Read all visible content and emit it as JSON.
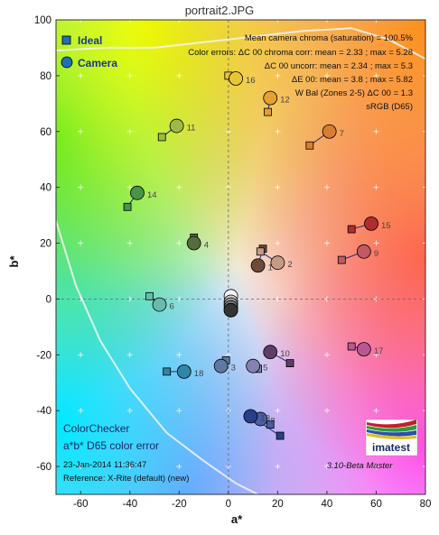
{
  "window": {
    "title": "portrait2.JPG"
  },
  "chart_data": {
    "type": "scatter",
    "xlabel": "a*",
    "ylabel": "b*",
    "xlim": [
      -70,
      80
    ],
    "ylim": [
      -70,
      100
    ],
    "xticks": [
      -60,
      -40,
      -20,
      0,
      20,
      40,
      60,
      80
    ],
    "yticks": [
      -60,
      -40,
      -20,
      0,
      20,
      40,
      60,
      80,
      100
    ],
    "grid": true,
    "legend": {
      "placement": "top-left",
      "entries": [
        {
          "label": "Ideal",
          "marker": "square"
        },
        {
          "label": "Camera",
          "marker": "circle"
        }
      ]
    },
    "stats_lines": [
      "Mean camera chroma (saturation) = 100.5%",
      "Color errors: ΔC 00 chroma corr:  mean = 2.33 ;  max = 5.28",
      "ΔC 00 uncorr:  mean = 2.34 ;  max = 5.3",
      "ΔE 00:  mean = 3.8 ;  max = 5.82",
      "W Bal (Zones 2-5) ΔC 00 = 1.3",
      "sRGB (D65)"
    ],
    "info_title": [
      "ColorChecker",
      "a*b* D65 color error"
    ],
    "info_lines": [
      "23-Jan-2014 11:36:47",
      "Reference: X-Rite (default) (new)"
    ],
    "version": "3.10-Beta  Master",
    "logo_text": "imatest",
    "patches": [
      {
        "id": "1",
        "ideal": [
          14,
          18
        ],
        "camera": [
          12,
          12
        ],
        "color": "#6e4a3a"
      },
      {
        "id": "2",
        "ideal": [
          13,
          17
        ],
        "camera": [
          20,
          13
        ],
        "color": "#c79a86"
      },
      {
        "id": "3",
        "ideal": [
          -1,
          -22
        ],
        "camera": [
          -3,
          -24
        ],
        "color": "#5e7aa0"
      },
      {
        "id": "4",
        "ideal": [
          -14,
          22
        ],
        "camera": [
          -14,
          20
        ],
        "color": "#566b3e"
      },
      {
        "id": "5",
        "ideal": [
          12,
          -25
        ],
        "camera": [
          10,
          -24
        ],
        "color": "#8481b3"
      },
      {
        "id": "6",
        "ideal": [
          -32,
          1
        ],
        "camera": [
          -28,
          -2
        ],
        "color": "#67bcac"
      },
      {
        "id": "7",
        "ideal": [
          33,
          55
        ],
        "camera": [
          41,
          60
        ],
        "color": "#d77e34"
      },
      {
        "id": "8",
        "ideal": [
          17,
          -45
        ],
        "camera": [
          13,
          -43
        ],
        "color": "#4a5da8"
      },
      {
        "id": "9",
        "ideal": [
          46,
          14
        ],
        "camera": [
          55,
          17
        ],
        "color": "#c25a63"
      },
      {
        "id": "10",
        "ideal": [
          25,
          -23
        ],
        "camera": [
          17,
          -19
        ],
        "color": "#5e3c6b"
      },
      {
        "id": "11",
        "ideal": [
          -27,
          58
        ],
        "camera": [
          -21,
          62
        ],
        "color": "#9dbb42"
      },
      {
        "id": "12",
        "ideal": [
          16,
          67
        ],
        "camera": [
          17,
          72
        ],
        "color": "#e4a12d"
      },
      {
        "id": "13",
        "ideal": [
          21,
          -49
        ],
        "camera": [
          9,
          -42
        ],
        "color": "#2a3d8a"
      },
      {
        "id": "14",
        "ideal": [
          -41,
          33
        ],
        "camera": [
          -37,
          38
        ],
        "color": "#4a9447"
      },
      {
        "id": "15",
        "ideal": [
          50,
          25
        ],
        "camera": [
          58,
          27
        ],
        "color": "#b02c33"
      },
      {
        "id": "16",
        "ideal": [
          0,
          80
        ],
        "camera": [
          3,
          79
        ],
        "color": "#e8c533"
      },
      {
        "id": "17",
        "ideal": [
          50,
          -17
        ],
        "camera": [
          55,
          -18
        ],
        "color": "#bb5695"
      },
      {
        "id": "18",
        "ideal": [
          -25,
          -26
        ],
        "camera": [
          -18,
          -26
        ],
        "color": "#2f86a6"
      },
      {
        "id": "N1",
        "ideal": [
          0,
          0
        ],
        "camera": [
          1,
          1
        ],
        "color": "#f3f3f3"
      },
      {
        "id": "N2",
        "ideal": [
          0,
          0
        ],
        "camera": [
          1,
          -1
        ],
        "color": "#c8c8c8"
      },
      {
        "id": "N3",
        "ideal": [
          0,
          0
        ],
        "camera": [
          1,
          -2
        ],
        "color": "#a0a0a0"
      },
      {
        "id": "N4",
        "ideal": [
          0,
          0
        ],
        "camera": [
          1,
          -3
        ],
        "color": "#7a7a7a"
      },
      {
        "id": "N5",
        "ideal": [
          0,
          0
        ],
        "camera": [
          1,
          -4
        ],
        "color": "#555555"
      },
      {
        "id": "N6",
        "ideal": [
          0,
          0
        ],
        "camera": [
          1,
          -4
        ],
        "color": "#343434"
      }
    ],
    "gamut_boundary": [
      [
        -70,
        89
      ],
      [
        -50,
        90
      ],
      [
        -30,
        90
      ],
      [
        -10,
        92
      ],
      [
        10,
        94
      ],
      [
        30,
        96
      ],
      [
        50,
        97
      ],
      [
        65,
        93
      ],
      [
        80,
        86
      ]
    ],
    "gamut_boundary_lower": [
      [
        -70,
        28
      ],
      [
        -62,
        5
      ],
      [
        -52,
        -15
      ],
      [
        -40,
        -32
      ],
      [
        -25,
        -48
      ],
      [
        -10,
        -58
      ],
      [
        3,
        -66
      ],
      [
        12,
        -70
      ]
    ]
  }
}
